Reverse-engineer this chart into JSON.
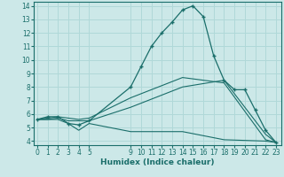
{
  "xlabel": "Humidex (Indice chaleur)",
  "bg_color": "#cce8e8",
  "grid_color": "#b0d8d8",
  "line_color": "#1a6e6a",
  "ylim": [
    3.7,
    14.3
  ],
  "yticks": [
    4,
    5,
    6,
    7,
    8,
    9,
    10,
    11,
    12,
    13,
    14
  ],
  "xticks": [
    0,
    1,
    2,
    3,
    4,
    5,
    9,
    10,
    11,
    12,
    13,
    14,
    15,
    16,
    17,
    18,
    19,
    20,
    21,
    22,
    23
  ],
  "xlim": [
    -0.3,
    23.5
  ],
  "series": [
    {
      "x": [
        0,
        1,
        2,
        3,
        4,
        5,
        9,
        10,
        11,
        12,
        13,
        14,
        15,
        16,
        17,
        18,
        19,
        20,
        21,
        22,
        23
      ],
      "y": [
        5.6,
        5.8,
        5.8,
        5.3,
        5.2,
        5.5,
        8.0,
        9.5,
        11.0,
        12.0,
        12.8,
        13.7,
        14.0,
        13.2,
        10.3,
        8.5,
        7.8,
        7.8,
        6.3,
        4.8,
        3.9
      ],
      "with_markers": true
    },
    {
      "x": [
        0,
        1,
        2,
        3,
        4,
        5,
        9,
        14,
        18,
        22,
        23
      ],
      "y": [
        5.6,
        5.6,
        5.7,
        5.5,
        5.5,
        5.5,
        6.5,
        8.0,
        8.5,
        4.5,
        3.9
      ],
      "with_markers": false
    },
    {
      "x": [
        0,
        1,
        2,
        3,
        4,
        5,
        9,
        14,
        18,
        22,
        23
      ],
      "y": [
        5.6,
        5.7,
        5.8,
        5.7,
        5.6,
        5.7,
        7.2,
        8.7,
        8.3,
        4.1,
        3.9
      ],
      "with_markers": false
    },
    {
      "x": [
        0,
        1,
        2,
        3,
        4,
        5,
        9,
        14,
        18,
        22,
        23
      ],
      "y": [
        5.6,
        5.6,
        5.6,
        5.3,
        4.8,
        5.3,
        4.7,
        4.7,
        4.1,
        4.0,
        3.9
      ],
      "with_markers": false
    }
  ]
}
